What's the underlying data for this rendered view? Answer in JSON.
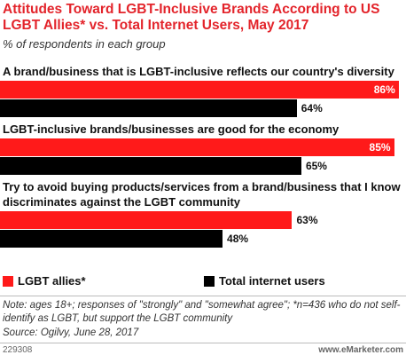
{
  "chart_data": {
    "type": "bar",
    "orientation": "horizontal",
    "title": "Attitudes Toward LGBT-Inclusive Brands According to US LGBT Allies* vs. Total Internet Users, May 2017",
    "subtitle": "% of respondents in each group",
    "categories": [
      "A brand/business that is LGBT-inclusive reflects our country's diversity",
      "LGBT-inclusive brands/businesses are good for the economy",
      "Try to avoid buying products/services from a brand/business that I know discriminates against the LGBT community"
    ],
    "series": [
      {
        "name": "LGBT allies*",
        "color": "#ff1a1a",
        "values": [
          86,
          85,
          63
        ],
        "value_labels": [
          "86%",
          "85%",
          "63%"
        ]
      },
      {
        "name": "Total internet users",
        "color": "#000000",
        "values": [
          64,
          65,
          48
        ],
        "value_labels": [
          "64%",
          "65%",
          "48%"
        ]
      }
    ],
    "note": "Note: ages 18+; responses of \"strongly\" and \"somewhat agree\"; *n=436 who do not self-identify as LGBT, but support the LGBT community",
    "source": "Source: Ogilvy, June 28, 2017",
    "id": "229308",
    "site": "www.eMarketer.com"
  }
}
